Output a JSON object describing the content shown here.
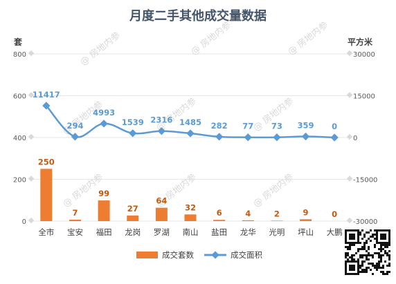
{
  "colors": {
    "bar": "#ed7d31",
    "line": "#5b9bd5",
    "bar_label": "#c55a11",
    "grid": "#e7e6e6"
  },
  "watermark": "@ 房地内参",
  "chart_data": {
    "type": "bar+line",
    "title": "月度二手其他成交量数据",
    "left_axis_unit": "套",
    "right_axis_unit": "平方米",
    "categories": [
      "全市",
      "宝安",
      "福田",
      "龙岗",
      "罗湖",
      "南山",
      "盐田",
      "龙华",
      "光明",
      "坪山",
      "大鹏"
    ],
    "series": [
      {
        "name": "成交套数",
        "type": "bar",
        "axis": "left",
        "values": [
          250,
          7,
          99,
          27,
          64,
          32,
          6,
          4,
          2,
          9,
          0
        ],
        "labels": [
          "250",
          "7",
          "99",
          "27",
          "64",
          "32",
          "6",
          "4",
          "2",
          "9",
          "0"
        ]
      },
      {
        "name": "成交面积",
        "type": "line",
        "axis": "right",
        "values": [
          11417,
          294,
          4993,
          1539,
          2316,
          1485,
          282,
          77,
          73,
          359,
          0
        ],
        "labels": [
          "11417",
          "294",
          "4993",
          "1539",
          "2316",
          "1485",
          "282",
          "77",
          "73",
          "359",
          "0"
        ]
      }
    ],
    "left_axis": {
      "min": 0,
      "max": 800,
      "ticks": [
        0,
        200,
        400,
        600,
        800
      ]
    },
    "right_axis": {
      "min": -30000,
      "max": 30000,
      "ticks": [
        -30000,
        -15000,
        0,
        15000,
        30000
      ]
    },
    "grid": true,
    "legend_position": "bottom"
  }
}
